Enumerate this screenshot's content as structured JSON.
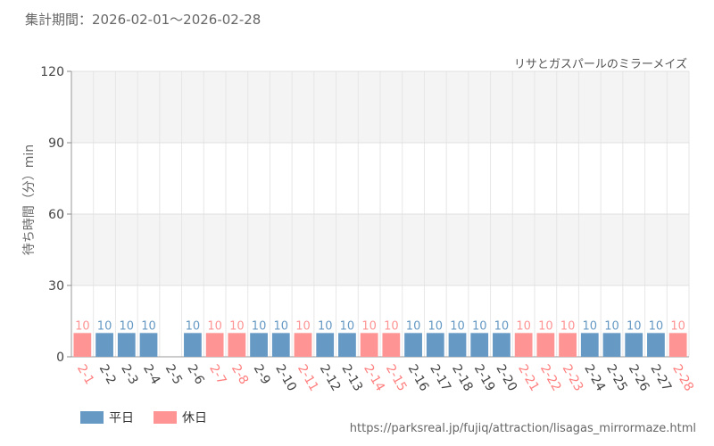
{
  "header": {
    "period": "集計期間：2026-02-01～2026-02-28"
  },
  "chart_data": {
    "type": "bar",
    "subtitle": "リサとガスパールのミラーメイズ",
    "ylabel": "待ち時間（分）min",
    "ylim": [
      0,
      120
    ],
    "yticks": [
      0,
      30,
      60,
      90,
      120
    ],
    "categories": [
      "2-1",
      "2-2",
      "2-3",
      "2-4",
      "2-5",
      "2-6",
      "2-7",
      "2-8",
      "2-9",
      "2-10",
      "2-11",
      "2-12",
      "2-13",
      "2-14",
      "2-15",
      "2-16",
      "2-17",
      "2-18",
      "2-19",
      "2-20",
      "2-21",
      "2-22",
      "2-23",
      "2-24",
      "2-25",
      "2-26",
      "2-27",
      "2-28"
    ],
    "values": [
      10,
      10,
      10,
      10,
      null,
      10,
      10,
      10,
      10,
      10,
      10,
      10,
      10,
      10,
      10,
      10,
      10,
      10,
      10,
      10,
      10,
      10,
      10,
      10,
      10,
      10,
      10,
      10
    ],
    "day_type": [
      "休日",
      "平日",
      "平日",
      "平日",
      "平日",
      "平日",
      "休日",
      "休日",
      "平日",
      "平日",
      "休日",
      "平日",
      "平日",
      "休日",
      "休日",
      "平日",
      "平日",
      "平日",
      "平日",
      "平日",
      "休日",
      "休日",
      "休日",
      "平日",
      "平日",
      "平日",
      "平日",
      "休日"
    ],
    "series": [
      {
        "name": "平日",
        "color": "#6699c4"
      },
      {
        "name": "休日",
        "color": "#ff9494"
      }
    ],
    "label_colors": {
      "平日": "#444444",
      "休日": "#ff7f7f"
    },
    "grid": true,
    "legend": "bottom-left"
  },
  "footer": {
    "source": "https://parksreal.jp/fujiq/attraction/lisagas_mirrormaze.html"
  }
}
